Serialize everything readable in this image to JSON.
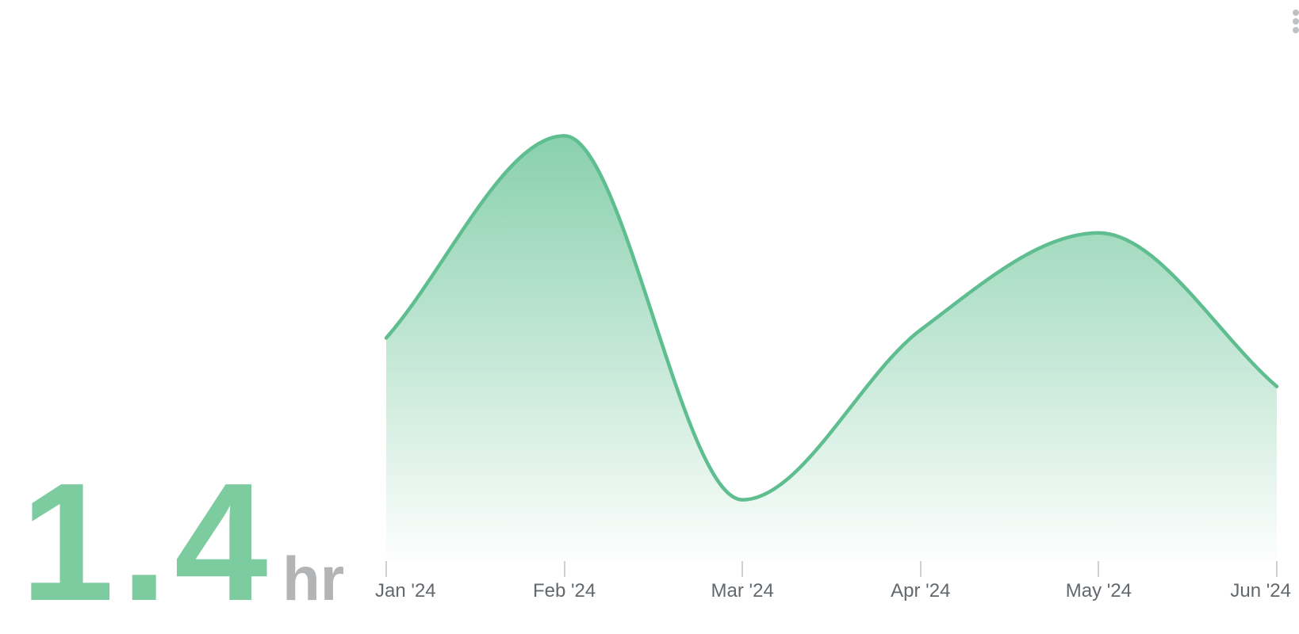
{
  "widget": {
    "metric_value": "1.4",
    "metric_unit": "hr"
  },
  "menu": {
    "icon": "kebab-vertical-menu-icon"
  },
  "colors": {
    "accent_green": "#7dcca0",
    "line_green": "#5fbe8f",
    "fill_green": "#66c295",
    "unit_gray": "#b2b4b6",
    "label_gray": "#63686d",
    "tick_gray": "#cdd0d4",
    "menu_dot_gray": "#bfc2c4",
    "background": "#ffffff"
  },
  "chart_data": {
    "type": "area",
    "categories": [
      "Jan '24",
      "Feb '24",
      "Mar '24",
      "Apr '24",
      "May '24",
      "Jun '24"
    ],
    "series": [
      {
        "name": "",
        "values": [
          1.35,
          2.6,
          0.35,
          1.4,
          2.0,
          1.05
        ]
      }
    ],
    "title": "",
    "xlabel": "",
    "ylabel": "",
    "ylim": [
      0,
      3.44
    ],
    "grid": false,
    "legend": false,
    "smooth": true,
    "markers": false,
    "fill": "vertical-gradient-fade-to-white",
    "x_axis_position": "bottom"
  }
}
